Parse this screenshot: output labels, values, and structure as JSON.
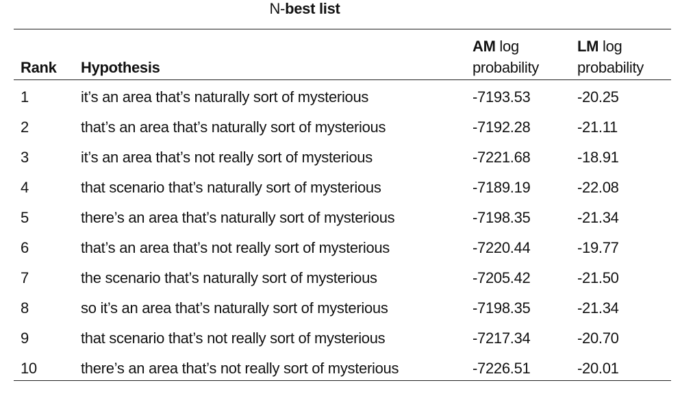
{
  "title": {
    "prefix": "N-",
    "bold": "best list"
  },
  "table": {
    "headers": {
      "rank": "Rank",
      "hypothesis": "Hypothesis",
      "am_bold": "AM",
      "am_rest": " log",
      "am_line2": "probability",
      "lm_bold": "LM",
      "lm_rest": " log",
      "lm_line2": "probability"
    },
    "rows": [
      {
        "rank": "1",
        "hypothesis": "it’s an area that’s naturally sort of mysterious",
        "am": "-7193.53",
        "lm": "-20.25"
      },
      {
        "rank": "2",
        "hypothesis": "that’s an area that’s naturally sort of mysterious",
        "am": "-7192.28",
        "lm": "-21.11"
      },
      {
        "rank": "3",
        "hypothesis": "it’s an area that’s not really sort of mysterious",
        "am": "-7221.68",
        "lm": "-18.91"
      },
      {
        "rank": "4",
        "hypothesis": "that scenario that’s naturally sort of mysterious",
        "am": "-7189.19",
        "lm": "-22.08"
      },
      {
        "rank": "5",
        "hypothesis": "there’s an area that’s naturally sort of mysterious",
        "am": "-7198.35",
        "lm": "-21.34"
      },
      {
        "rank": "6",
        "hypothesis": "that’s an area that’s not really sort of mysterious",
        "am": "-7220.44",
        "lm": "-19.77"
      },
      {
        "rank": "7",
        "hypothesis": "the scenario that’s naturally sort of mysterious",
        "am": "-7205.42",
        "lm": "-21.50"
      },
      {
        "rank": "8",
        "hypothesis": "so it’s an area that’s naturally sort of mysterious",
        "am": "-7198.35",
        "lm": "-21.34"
      },
      {
        "rank": "9",
        "hypothesis": "that scenario that’s not really sort of mysterious",
        "am": "-7217.34",
        "lm": "-20.70"
      },
      {
        "rank": "10",
        "hypothesis": "there’s an area that’s not really sort of mysterious",
        "am": "-7226.51",
        "lm": "-20.01"
      }
    ]
  }
}
